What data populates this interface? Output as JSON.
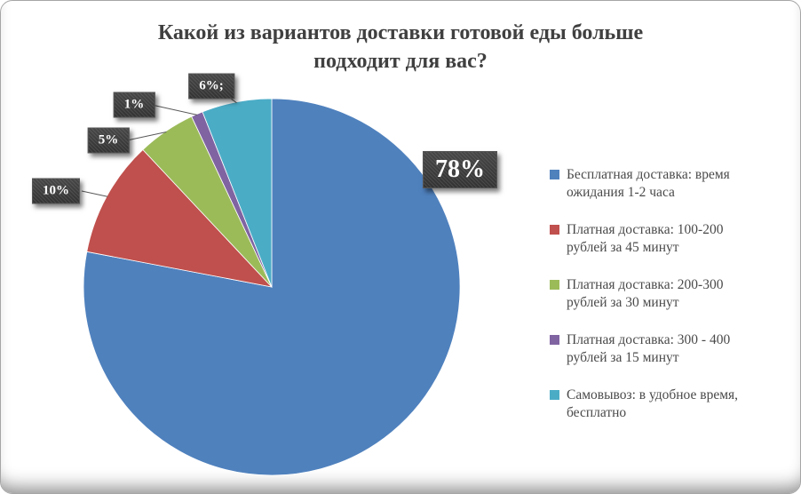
{
  "chart_data": {
    "type": "pie",
    "title": "Какой из вариантов доставки готовой еды больше подходит для вас?",
    "legend_position": "right",
    "units": "percent",
    "start_angle_deg": 0,
    "direction": "clockwise",
    "slices": [
      {
        "label": "Бесплатная доставка: время ожидания 1-2 часа",
        "value": 78,
        "data_label": "78%",
        "color": "#4F81BD"
      },
      {
        "label": "Платная доставка: 100-200 рублей за 45 минут",
        "value": 10,
        "data_label": "10%",
        "color": "#C0504D"
      },
      {
        "label": "Платная доставка: 200-300 рублей за 30 минут",
        "value": 5,
        "data_label": "5%",
        "color": "#9BBB59"
      },
      {
        "label": "Платная доставка: 300 - 400 рублей за 15 минут",
        "value": 1,
        "data_label": "1%",
        "color": "#8064A2"
      },
      {
        "label": "Самовывоз: в удобное время, бесплатно",
        "value": 6,
        "data_label": "6%;",
        "color": "#4BACC6"
      }
    ],
    "label_box_style": {
      "fill": "#3c3c3c",
      "text_color": "#ffffff"
    },
    "leader_line_color": "#595959",
    "title_color": "#404040",
    "legend_text_color": "#4a4a4a"
  }
}
